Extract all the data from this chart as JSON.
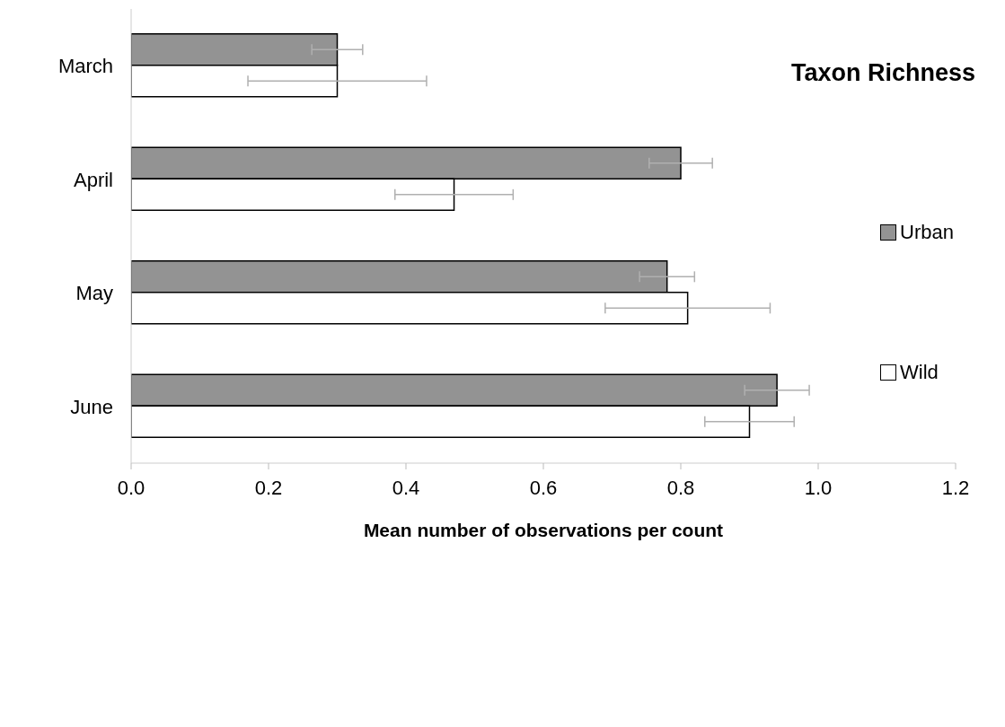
{
  "chart_data": {
    "type": "bar",
    "orientation": "horizontal",
    "title": "Taxon Richness",
    "xlabel": "Mean number of observations per count",
    "categories": [
      "March",
      "April",
      "May",
      "June"
    ],
    "series": [
      {
        "name": "Urban",
        "color": "#939393",
        "values": [
          0.3,
          0.8,
          0.78,
          0.94
        ],
        "errors": [
          0.037,
          0.046,
          0.04,
          0.047
        ]
      },
      {
        "name": "Wild",
        "color": "#ffffff",
        "values": [
          0.3,
          0.47,
          0.81,
          0.9
        ],
        "errors": [
          0.13,
          0.086,
          0.12,
          0.065
        ]
      }
    ],
    "xlim": [
      0,
      1.2
    ],
    "xticks": [
      {
        "value": 0,
        "label": "0.0"
      },
      {
        "value": 0.2,
        "label": "0.2"
      },
      {
        "value": 0.4,
        "label": "0.4"
      },
      {
        "value": 0.6,
        "label": "0.6"
      },
      {
        "value": 0.8,
        "label": "0.8"
      },
      {
        "value": 1.0,
        "label": "1.0"
      },
      {
        "value": 1.2,
        "label": "1.2"
      }
    ],
    "legend": "right"
  }
}
